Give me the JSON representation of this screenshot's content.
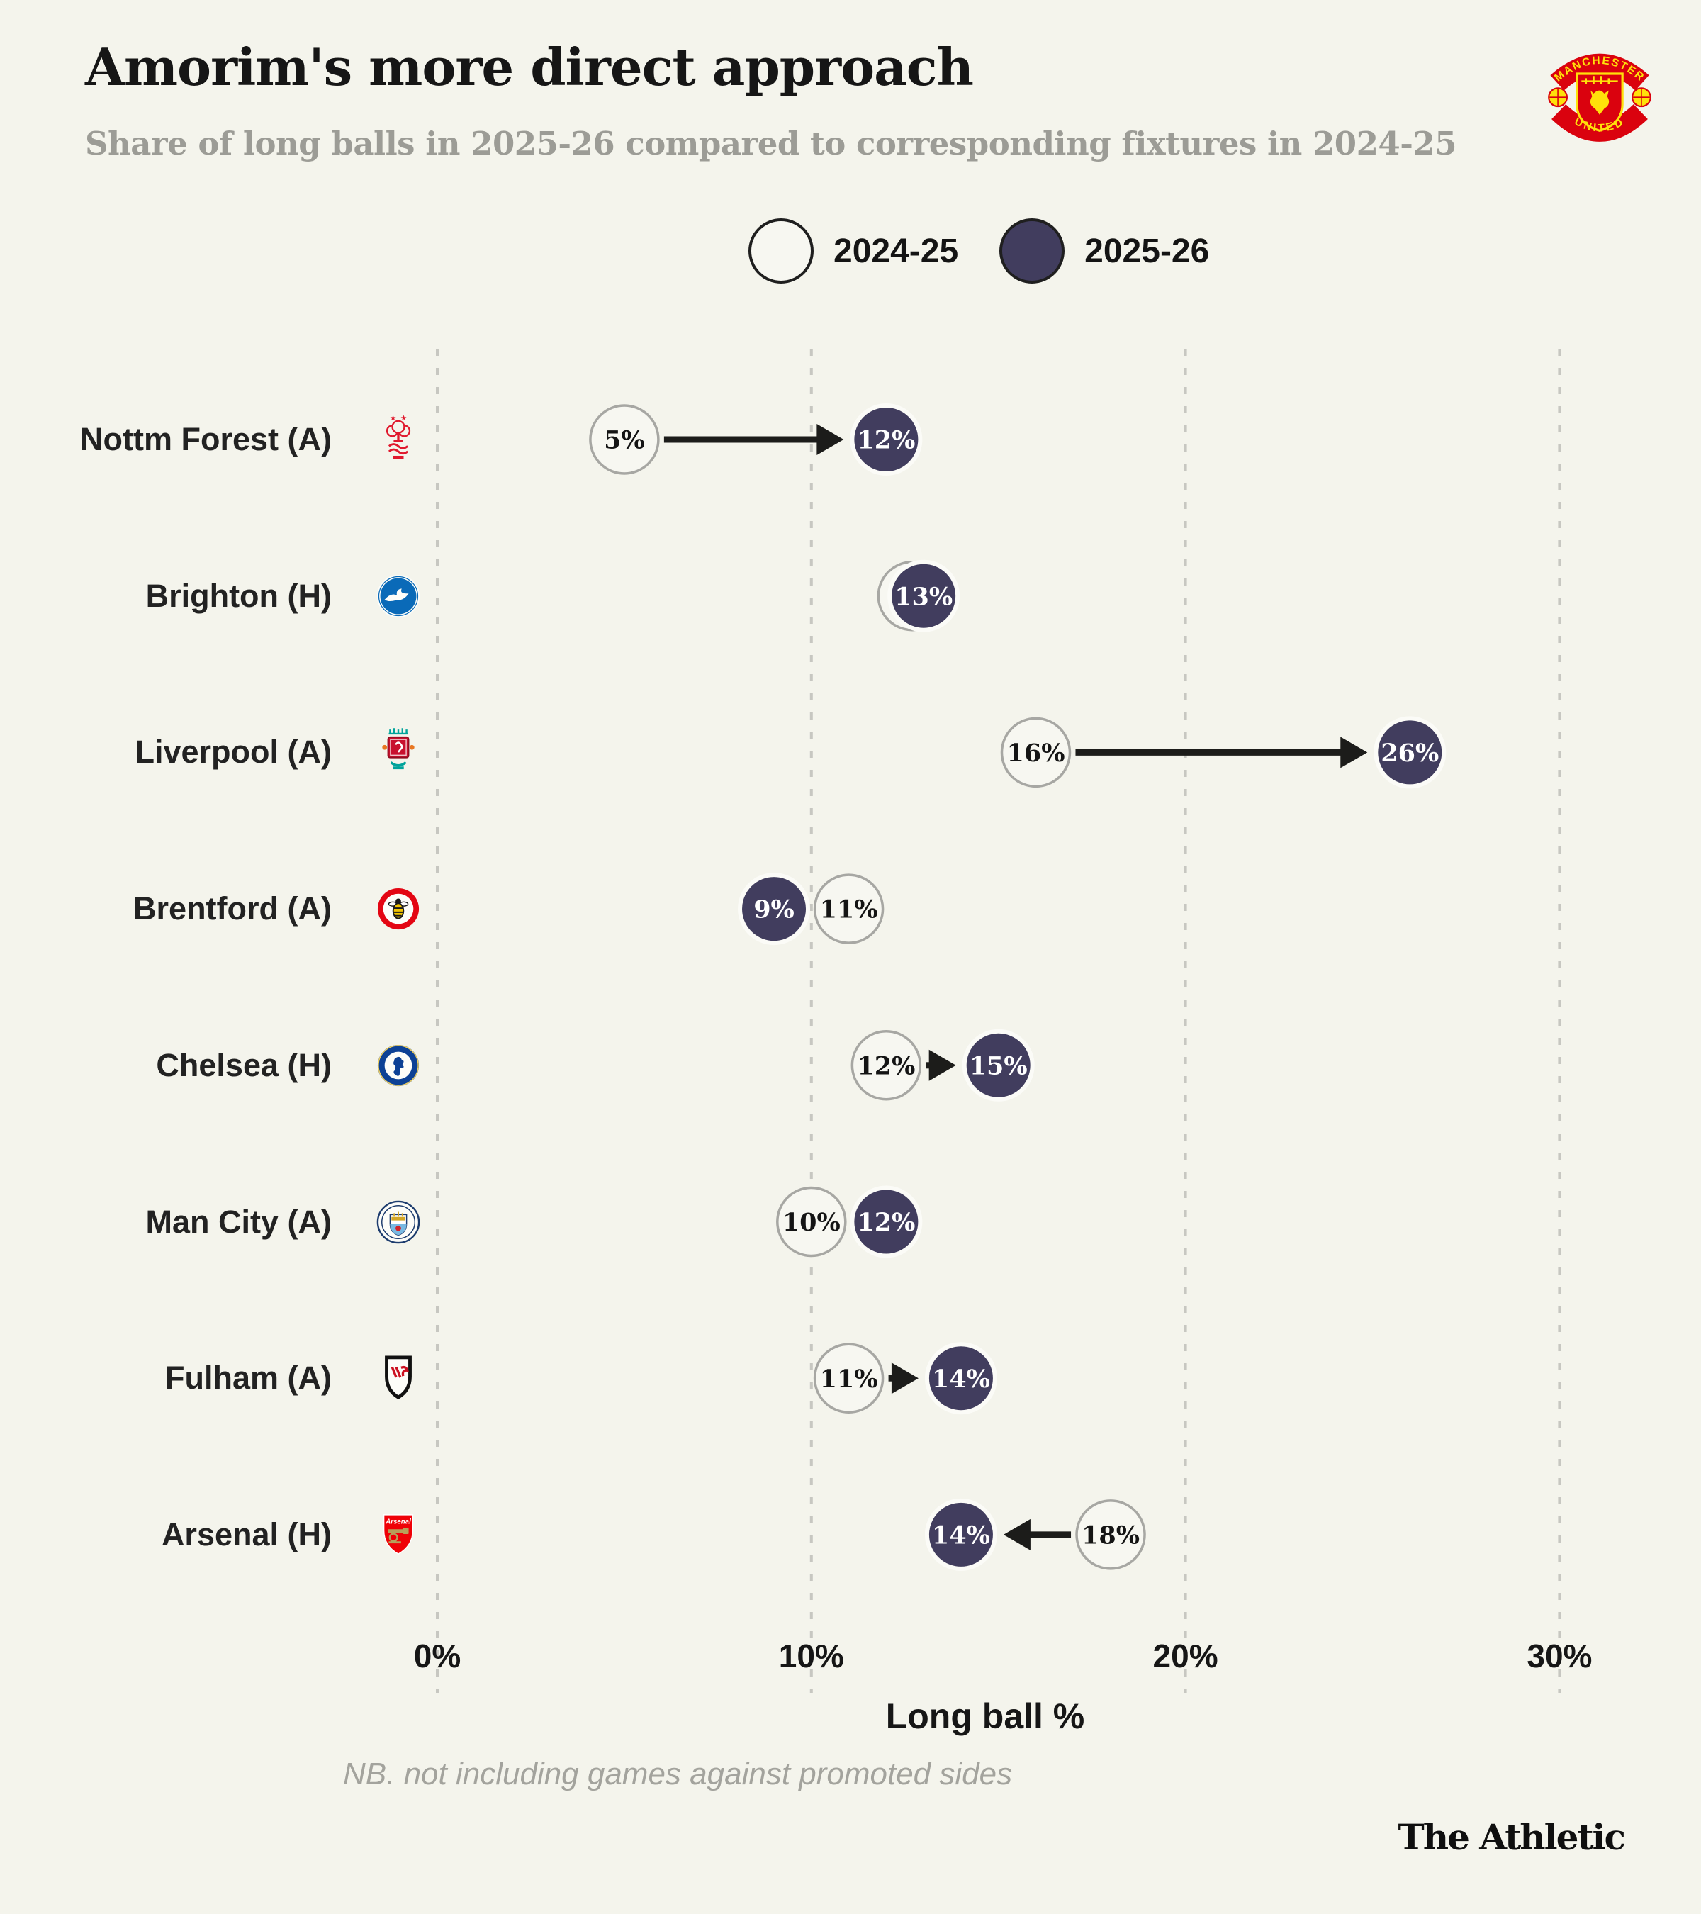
{
  "header": {
    "title": "Amorim's more direct approach",
    "subtitle": "Share of long balls in 2025-26 compared to corresponding fixtures in 2024-25",
    "crest": "manchester-united-crest",
    "crest_text_top": "MANCHESTER",
    "crest_text_bottom": "UNITED"
  },
  "legend": [
    {
      "label": "2024-25",
      "style": "open"
    },
    {
      "label": "2025-26",
      "style": "filled"
    }
  ],
  "colors": {
    "background": "#f4f4ec",
    "filled_circle": "#413d5e",
    "open_circle_fill": "#f7f7f1",
    "open_circle_border": "#a7a7a3",
    "filled_circle_halo": "#fbfbf7",
    "arrow": "#1c1c1a",
    "gridline": "#c7c7c1",
    "text_dark": "#161616",
    "text_gray": "#9c9c96"
  },
  "chart_data": {
    "type": "dumbbell",
    "title": "Amorim's more direct approach",
    "xlabel": "Long ball %",
    "x_ticks": [
      "0%",
      "10%",
      "20%",
      "30%"
    ],
    "x_tick_values": [
      0,
      10,
      20,
      30
    ],
    "xlim": [
      0,
      33
    ],
    "grid": "vertical-dashed",
    "legend_position": "top-center",
    "series_names": [
      "2024-25",
      "2025-26"
    ],
    "rows": [
      {
        "team": "Nottm Forest (A)",
        "badge": "nottingham-forest-badge",
        "prev": 5,
        "prev_label": "5%",
        "curr": 12,
        "curr_label": "12%",
        "arrow": "right"
      },
      {
        "team": "Brighton (H)",
        "badge": "brighton-badge",
        "prev": 12.7,
        "prev_label": "",
        "curr": 13,
        "curr_label": "13%",
        "arrow": null
      },
      {
        "team": "Liverpool (A)",
        "badge": "liverpool-badge",
        "prev": 16,
        "prev_label": "16%",
        "curr": 26,
        "curr_label": "26%",
        "arrow": "right"
      },
      {
        "team": "Brentford (A)",
        "badge": "brentford-badge",
        "prev": 11,
        "prev_label": "11%",
        "curr": 9,
        "curr_label": "9%",
        "arrow": null
      },
      {
        "team": "Chelsea (H)",
        "badge": "chelsea-badge",
        "prev": 12,
        "prev_label": "12%",
        "curr": 15,
        "curr_label": "15%",
        "arrow": "right"
      },
      {
        "team": "Man City (A)",
        "badge": "man-city-badge",
        "prev": 10,
        "prev_label": "10%",
        "curr": 12,
        "curr_label": "12%",
        "arrow": null
      },
      {
        "team": "Fulham (A)",
        "badge": "fulham-badge",
        "prev": 11,
        "prev_label": "11%",
        "curr": 14,
        "curr_label": "14%",
        "arrow": "right"
      },
      {
        "team": "Arsenal (H)",
        "badge": "arsenal-badge",
        "prev": 18,
        "prev_label": "18%",
        "curr": 14,
        "curr_label": "14%",
        "arrow": "left"
      }
    ]
  },
  "badge_text": {
    "arsenal": "Arsenal"
  },
  "footer": {
    "note": "NB. not including games against promoted sides",
    "brand": "The Athletic"
  }
}
